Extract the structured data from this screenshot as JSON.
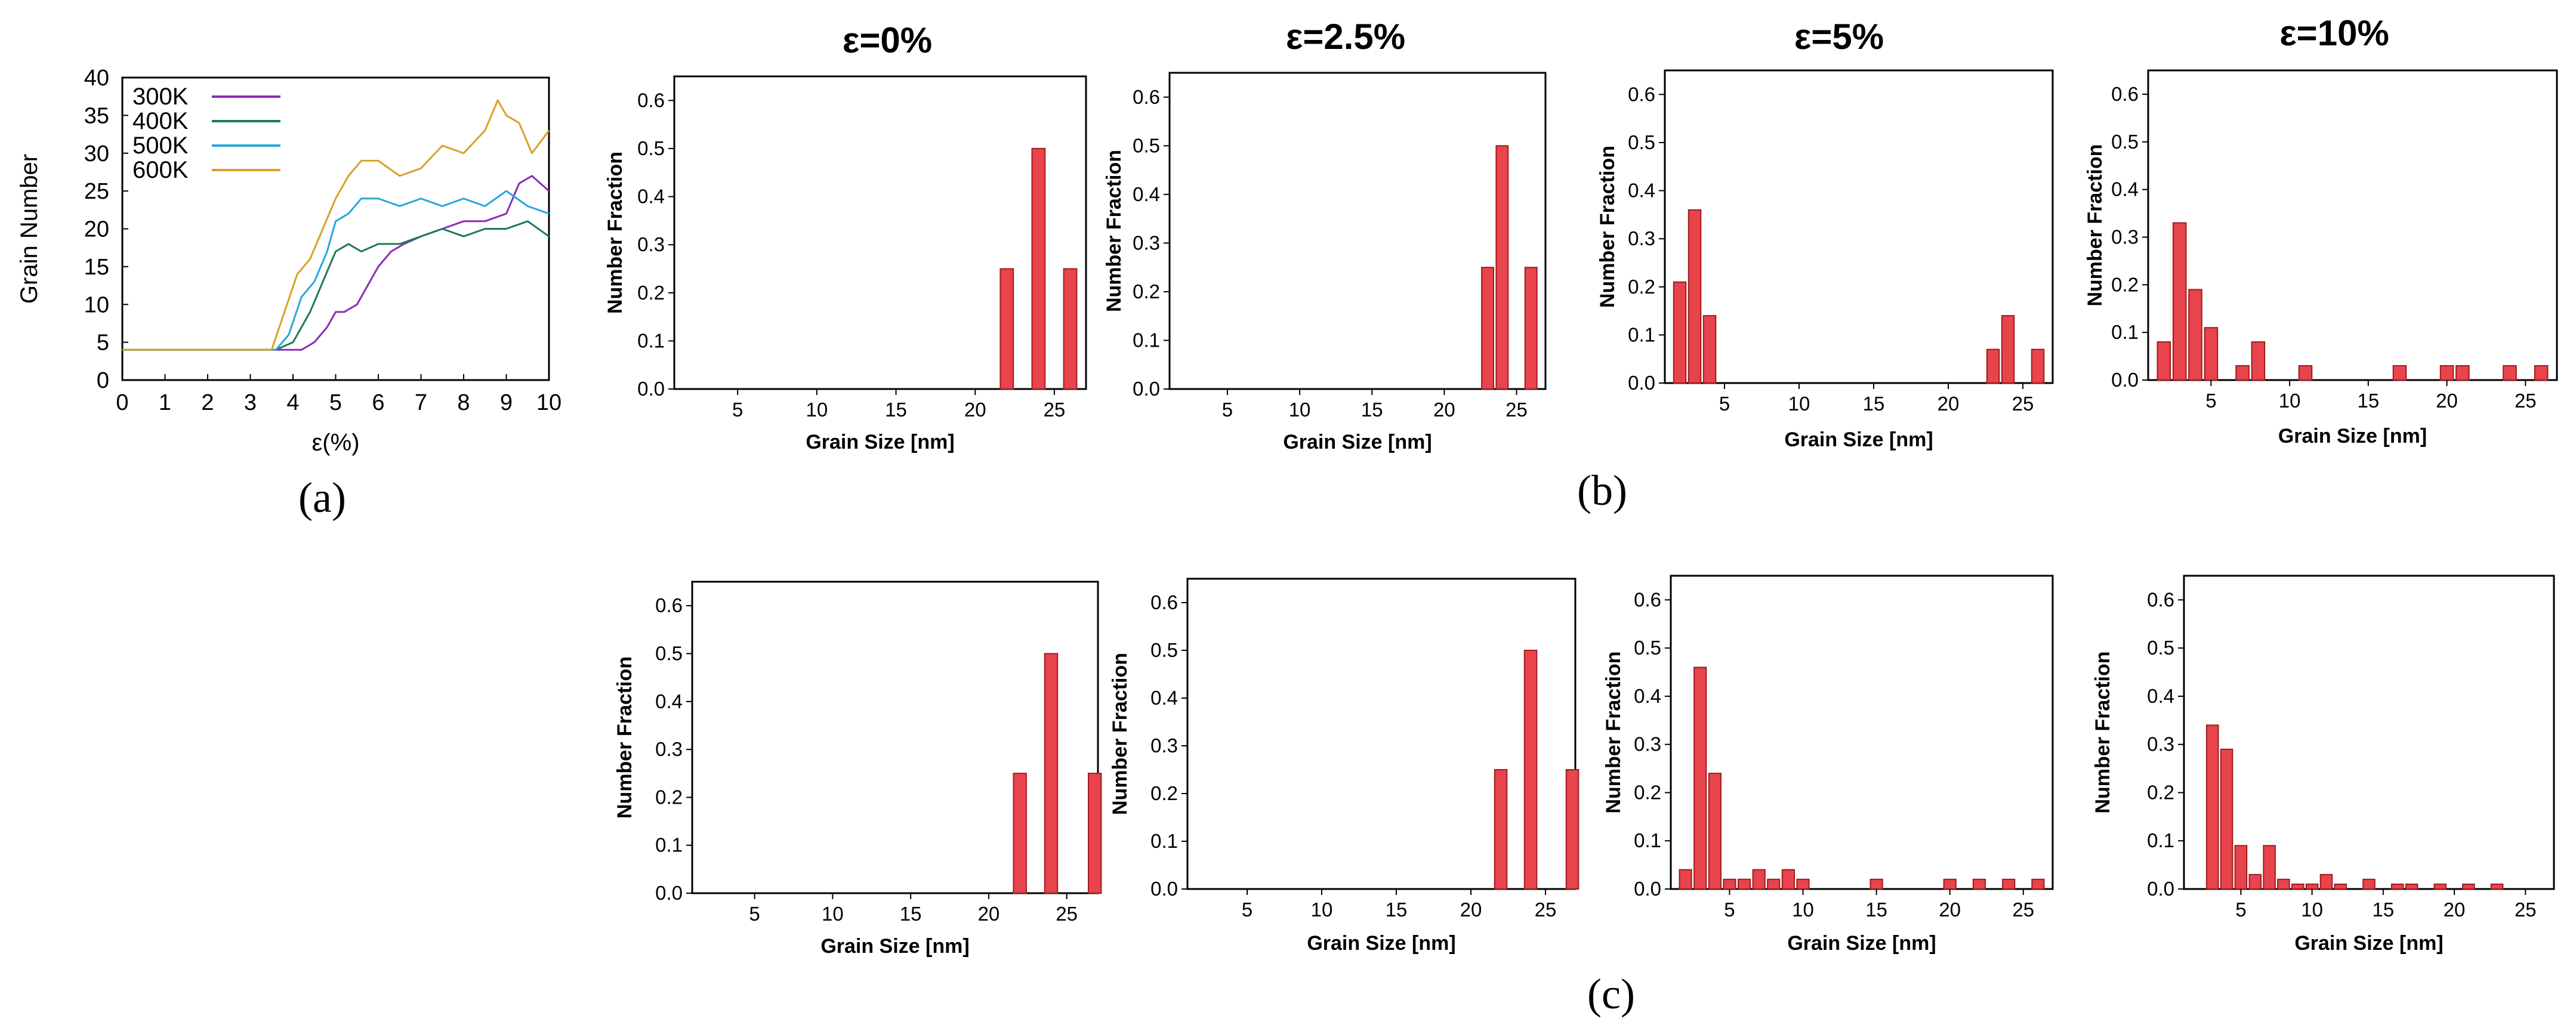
{
  "figure": {
    "label_a": "(a)",
    "label_b": "(b)",
    "label_c": "(c)",
    "column_titles": [
      "ε=0%",
      "ε=2.5%",
      "ε=5%",
      "ε=10%"
    ]
  },
  "colors": {
    "bar_fill": "#e8444b",
    "bar_stroke": "#a01a20",
    "bar_highlight": "#f4a3a3",
    "axis": "#000000",
    "300K": "#8a2bb8",
    "400K": "#1c7a58",
    "500K": "#26a6dd",
    "600K": "#d9a028"
  },
  "chart_data": [
    {
      "id": "a",
      "type": "line",
      "title": "",
      "xlabel": "ε(%)",
      "ylabel": "Grain Number",
      "xlim": [
        0,
        10
      ],
      "ylim": [
        0,
        40
      ],
      "xticks": [
        "0",
        "1",
        "2",
        "3",
        "4",
        "5",
        "6",
        "7",
        "8",
        "9",
        "10"
      ],
      "yticks": [
        "0",
        "5",
        "10",
        "15",
        "20",
        "25",
        "30",
        "35",
        "40"
      ],
      "legend_position": "top-left",
      "series": [
        {
          "name": "300K",
          "x": [
            0,
            3.5,
            4.2,
            4.5,
            4.8,
            5.0,
            5.2,
            5.5,
            5.8,
            6.0,
            6.3,
            6.6,
            7.0,
            7.5,
            8.0,
            8.5,
            9.0,
            9.3,
            9.6,
            10.0
          ],
          "y": [
            4,
            4,
            4,
            5,
            7,
            9,
            9,
            10,
            13,
            15,
            17,
            18,
            19,
            20,
            21,
            21,
            22,
            26,
            27,
            25
          ]
        },
        {
          "name": "400K",
          "x": [
            0,
            3.6,
            4.0,
            4.4,
            4.7,
            5.0,
            5.3,
            5.6,
            6.0,
            6.5,
            7.0,
            7.5,
            8.0,
            8.5,
            9.0,
            9.5,
            10.0
          ],
          "y": [
            4,
            4,
            5,
            9,
            13,
            17,
            18,
            17,
            18,
            18,
            19,
            20,
            19,
            20,
            20,
            21,
            19
          ]
        },
        {
          "name": "500K",
          "x": [
            0,
            3.6,
            3.9,
            4.2,
            4.5,
            4.8,
            5.0,
            5.3,
            5.6,
            6.0,
            6.5,
            7.0,
            7.5,
            8.0,
            8.5,
            9.0,
            9.5,
            10.0
          ],
          "y": [
            4,
            4,
            6,
            11,
            13,
            17,
            21,
            22,
            24,
            24,
            23,
            24,
            23,
            24,
            23,
            25,
            23,
            22
          ]
        },
        {
          "name": "600K",
          "x": [
            0,
            3.5,
            3.8,
            4.1,
            4.4,
            4.7,
            5.0,
            5.3,
            5.6,
            6.0,
            6.5,
            7.0,
            7.5,
            8.0,
            8.5,
            8.8,
            9.0,
            9.3,
            9.6,
            10.0
          ],
          "y": [
            4,
            4,
            9,
            14,
            16,
            20,
            24,
            27,
            29,
            29,
            27,
            28,
            31,
            30,
            33,
            37,
            35,
            34,
            30,
            33
          ]
        }
      ]
    },
    {
      "id": "b1",
      "type": "bar",
      "column_title": "ε=0%",
      "xlabel": "Grain Size [nm]",
      "ylabel": "Number Fraction",
      "xlim": [
        1,
        27
      ],
      "ylim": [
        0,
        0.65
      ],
      "xticks": [
        "5",
        "10",
        "15",
        "20",
        "25"
      ],
      "yticks": [
        "0.0",
        "0.1",
        "0.2",
        "0.3",
        "0.4",
        "0.5",
        "0.6"
      ],
      "x": [
        22,
        24,
        26
      ],
      "values": [
        0.25,
        0.5,
        0.25
      ]
    },
    {
      "id": "b2",
      "type": "bar",
      "column_title": "ε=2.5%",
      "xlabel": "Grain Size [nm]",
      "ylabel": "Number Fraction",
      "xlim": [
        1,
        27
      ],
      "ylim": [
        0,
        0.65
      ],
      "xticks": [
        "5",
        "10",
        "15",
        "20",
        "25"
      ],
      "yticks": [
        "0.0",
        "0.1",
        "0.2",
        "0.3",
        "0.4",
        "0.5",
        "0.6"
      ],
      "x": [
        23,
        24,
        26
      ],
      "values": [
        0.25,
        0.5,
        0.25
      ]
    },
    {
      "id": "b3",
      "type": "bar",
      "column_title": "ε=5%",
      "xlabel": "Grain Size [nm]",
      "ylabel": "Number Fraction",
      "xlim": [
        1,
        27
      ],
      "ylim": [
        0,
        0.65
      ],
      "xticks": [
        "5",
        "10",
        "15",
        "20",
        "25"
      ],
      "yticks": [
        "0.0",
        "0.1",
        "0.2",
        "0.3",
        "0.4",
        "0.5",
        "0.6"
      ],
      "x": [
        2,
        3,
        4,
        23,
        24,
        26
      ],
      "values": [
        0.21,
        0.36,
        0.14,
        0.07,
        0.14,
        0.07
      ]
    },
    {
      "id": "b4",
      "type": "bar",
      "column_title": "ε=10%",
      "xlabel": "Grain Size [nm]",
      "ylabel": "Number Fraction",
      "xlim": [
        1,
        27
      ],
      "ylim": [
        0,
        0.65
      ],
      "xticks": [
        "5",
        "10",
        "15",
        "20",
        "25"
      ],
      "yticks": [
        "0.0",
        "0.1",
        "0.2",
        "0.3",
        "0.4",
        "0.5",
        "0.6"
      ],
      "x": [
        2,
        3,
        4,
        5,
        7,
        8,
        11,
        17,
        20,
        21,
        24,
        26
      ],
      "values": [
        0.08,
        0.33,
        0.19,
        0.11,
        0.03,
        0.08,
        0.03,
        0.03,
        0.03,
        0.03,
        0.03,
        0.03
      ]
    },
    {
      "id": "c1",
      "type": "bar",
      "xlabel": "Grain Size [nm]",
      "ylabel": "Number Fraction",
      "xlim": [
        1,
        27
      ],
      "ylim": [
        0,
        0.65
      ],
      "xticks": [
        "5",
        "10",
        "15",
        "20",
        "25"
      ],
      "yticks": [
        "0.0",
        "0.1",
        "0.2",
        "0.3",
        "0.4",
        "0.5",
        "0.6"
      ],
      "x": [
        22,
        24,
        26.8
      ],
      "values": [
        0.25,
        0.5,
        0.25
      ]
    },
    {
      "id": "c2",
      "type": "bar",
      "xlabel": "Grain Size [nm]",
      "ylabel": "Number Fraction",
      "xlim": [
        1,
        27
      ],
      "ylim": [
        0,
        0.65
      ],
      "xticks": [
        "5",
        "10",
        "15",
        "20",
        "25"
      ],
      "yticks": [
        "0.0",
        "0.1",
        "0.2",
        "0.3",
        "0.4",
        "0.5",
        "0.6"
      ],
      "x": [
        22,
        24,
        26.8
      ],
      "values": [
        0.25,
        0.5,
        0.25
      ]
    },
    {
      "id": "c3",
      "type": "bar",
      "xlabel": "Grain Size [nm]",
      "ylabel": "Number Fraction",
      "xlim": [
        1,
        27
      ],
      "ylim": [
        0,
        0.65
      ],
      "xticks": [
        "5",
        "10",
        "15",
        "20",
        "25"
      ],
      "yticks": [
        "0.0",
        "0.1",
        "0.2",
        "0.3",
        "0.4",
        "0.5",
        "0.6"
      ],
      "x": [
        2,
        3,
        4,
        5,
        6,
        7,
        8,
        9,
        10,
        15,
        20,
        22,
        24,
        26
      ],
      "values": [
        0.04,
        0.46,
        0.24,
        0.02,
        0.02,
        0.04,
        0.02,
        0.04,
        0.02,
        0.02,
        0.02,
        0.02,
        0.02,
        0.02
      ]
    },
    {
      "id": "c4",
      "type": "bar",
      "xlabel": "Grain Size [nm]",
      "ylabel": "Number Fraction",
      "xlim": [
        1,
        27
      ],
      "ylim": [
        0,
        0.65
      ],
      "xticks": [
        "5",
        "10",
        "15",
        "20",
        "25"
      ],
      "yticks": [
        "0.0",
        "0.1",
        "0.2",
        "0.3",
        "0.4",
        "0.5",
        "0.6"
      ],
      "x": [
        3,
        4,
        5,
        6,
        7,
        8,
        9,
        10,
        11,
        12,
        14,
        16,
        17,
        19,
        21,
        23
      ],
      "values": [
        0.34,
        0.29,
        0.09,
        0.03,
        0.09,
        0.02,
        0.01,
        0.01,
        0.03,
        0.01,
        0.02,
        0.01,
        0.01,
        0.01,
        0.01,
        0.01
      ]
    }
  ]
}
